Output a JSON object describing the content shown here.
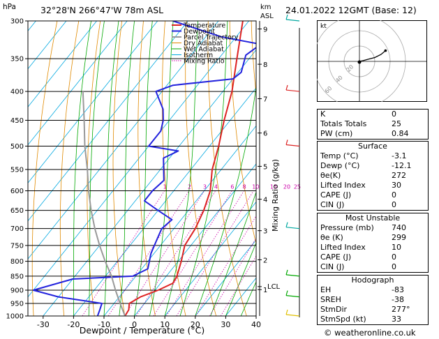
{
  "header": {
    "coords": "32°28'N  266°47'W  78m  ASL",
    "date": "24.01.2022  12GMT  (Base: 12)",
    "hpa_unit": "hPa",
    "km_unit_line1": "km",
    "km_unit_line2": "ASL"
  },
  "chart_data": {
    "type": "line",
    "title": "",
    "xlabel": "Dewpoint / Temperature (°C)",
    "ylabel": "hPa",
    "right_label": "Mixing Ratio (g/kg)",
    "x_ticks": [
      -30,
      -20,
      -10,
      0,
      10,
      20,
      30,
      40
    ],
    "y_ticks": [
      300,
      350,
      400,
      450,
      500,
      550,
      600,
      650,
      700,
      750,
      800,
      850,
      900,
      950,
      1000
    ],
    "xlim": [
      -35,
      40
    ],
    "ylim": [
      1000,
      300
    ],
    "km_ticks": [
      {
        "label": "9",
        "p": 310
      },
      {
        "label": "8",
        "p": 358
      },
      {
        "label": "7",
        "p": 412
      },
      {
        "label": "6",
        "p": 474
      },
      {
        "label": "5",
        "p": 543
      },
      {
        "label": "4",
        "p": 621
      },
      {
        "label": "3",
        "p": 706
      },
      {
        "label": "2",
        "p": 795
      },
      {
        "label": "1",
        "p": 898
      }
    ],
    "lcl": {
      "label": "LCL",
      "p": 887
    },
    "mixing_ratio_labels": [
      "1",
      "2",
      "3",
      "4",
      "6",
      "8",
      "10",
      "15",
      "20",
      "25"
    ],
    "mixing_ratio_values": [
      1,
      2,
      3,
      4,
      6,
      8,
      10,
      15,
      20,
      25
    ],
    "legend": [
      "Temperature",
      "Dewpoint",
      "Parcel Trajectory",
      "Dry Adiabat",
      "Wet Adiabat",
      "Isotherm",
      "Mixing Ratio"
    ],
    "legend_position": "top-right",
    "series": [
      {
        "name": "Temperature",
        "color": "#dd2222",
        "points": [
          [
            -3.1,
            1000
          ],
          [
            -3.5,
            975
          ],
          [
            -5,
            950
          ],
          [
            -3,
            925
          ],
          [
            1,
            900
          ],
          [
            4,
            875
          ],
          [
            3.5,
            850
          ],
          [
            1,
            800
          ],
          [
            -2,
            750
          ],
          [
            -3,
            700
          ],
          [
            -5,
            650
          ],
          [
            -8,
            600
          ],
          [
            -13,
            550
          ],
          [
            -17,
            500
          ],
          [
            -22,
            450
          ],
          [
            -27,
            400
          ],
          [
            -34,
            350
          ],
          [
            -42,
            300
          ]
        ]
      },
      {
        "name": "Dewpoint",
        "color": "#2222dd",
        "points": [
          [
            -12.1,
            1000
          ],
          [
            -13,
            975
          ],
          [
            -14,
            950
          ],
          [
            -30,
            925
          ],
          [
            -40,
            900
          ],
          [
            -30,
            860
          ],
          [
            -11,
            850
          ],
          [
            -8,
            825
          ],
          [
            -11,
            775
          ],
          [
            -13,
            725
          ],
          [
            -14,
            700
          ],
          [
            -13,
            675
          ],
          [
            -20,
            650
          ],
          [
            -27,
            625
          ],
          [
            -27,
            600
          ],
          [
            -26,
            575
          ],
          [
            -32,
            525
          ],
          [
            -29,
            510
          ],
          [
            -40,
            500
          ],
          [
            -40,
            470
          ],
          [
            -42,
            450
          ],
          [
            -45,
            430
          ],
          [
            -52,
            400
          ],
          [
            -48,
            390
          ],
          [
            -30,
            380
          ],
          [
            -29,
            370
          ],
          [
            -32,
            345
          ],
          [
            -30,
            330
          ],
          [
            -45,
            320
          ],
          [
            -65,
            300
          ]
        ]
      },
      {
        "name": "Parcel Trajectory",
        "color": "#999999",
        "points": [
          [
            -3.1,
            1000
          ],
          [
            -8,
            950
          ],
          [
            -13,
            900
          ],
          [
            -18,
            850
          ],
          [
            -24,
            800
          ],
          [
            -30,
            750
          ],
          [
            -36,
            700
          ],
          [
            -42,
            650
          ],
          [
            -48,
            600
          ],
          [
            -54,
            550
          ],
          [
            -61,
            500
          ],
          [
            -68,
            450
          ],
          [
            -76,
            400
          ]
        ]
      }
    ]
  },
  "hodograph": {
    "unit_label": "kt",
    "ring_labels": [
      "20",
      "40",
      "60"
    ],
    "points_kt": [
      [
        0,
        0
      ],
      [
        5,
        1
      ],
      [
        12,
        3
      ],
      [
        20,
        5
      ],
      [
        28,
        9
      ],
      [
        34,
        14
      ]
    ]
  },
  "indices": {
    "rows": [
      {
        "label": "K",
        "value": "0"
      },
      {
        "label": "Totals Totals",
        "value": "25"
      },
      {
        "label": "PW (cm)",
        "value": "0.84"
      }
    ]
  },
  "surface": {
    "title": "Surface",
    "rows": [
      {
        "label": "Temp (°C)",
        "value": "-3.1"
      },
      {
        "label": "Dewp (°C)",
        "value": "-12.1"
      },
      {
        "label": "θe(K)",
        "value": "272"
      },
      {
        "label": "Lifted Index",
        "value": "30"
      },
      {
        "label": "CAPE (J)",
        "value": "0"
      },
      {
        "label": "CIN (J)",
        "value": "0"
      }
    ]
  },
  "most_unstable": {
    "title": "Most Unstable",
    "rows": [
      {
        "label": "Pressure (mb)",
        "value": "740"
      },
      {
        "label": "θe (K)",
        "value": "299"
      },
      {
        "label": "Lifted Index",
        "value": "10"
      },
      {
        "label": "CAPE (J)",
        "value": "0"
      },
      {
        "label": "CIN (J)",
        "value": "0"
      }
    ]
  },
  "hodo_table": {
    "title": "Hodograph",
    "rows": [
      {
        "label": "EH",
        "value": "-83"
      },
      {
        "label": "SREH",
        "value": "-38"
      },
      {
        "label": "StmDir",
        "value": "277°"
      },
      {
        "label": "StmSpd (kt)",
        "value": "33"
      }
    ]
  },
  "copyright": "© weatheronline.co.uk",
  "colors": {
    "temperature": "#dd2222",
    "dewpoint": "#2222dd",
    "parcel": "#999999",
    "dry_adiabat": "#e08a00",
    "wet_adiabat": "#00a800",
    "isotherm": "#00a8e0",
    "mixing_ratio": "#cc00aa"
  }
}
